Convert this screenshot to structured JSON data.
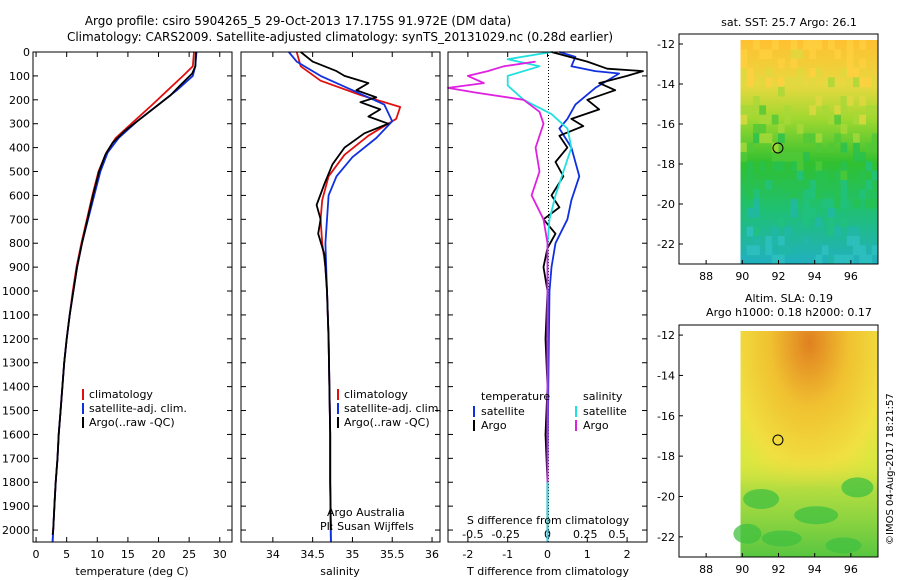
{
  "title": {
    "line1": "Argo profile: csiro 5904265_5 29-Oct-2013 17.175S 91.972E (DM data)",
    "line2": "Climatology: CARS2009. Satellite-adjusted climatology: synTS_20131029.nc (0.28d earlier)"
  },
  "colors": {
    "climatology": "#e01010",
    "satellite": "#1030e0",
    "argo": "#000000",
    "sat_salinity": "#20e0e0",
    "argo_salinity": "#e020e0"
  },
  "chart_data": [
    {
      "type": "line",
      "id": "temperature",
      "xlabel": "temperature (deg C)",
      "ylabel": "",
      "xlim": [
        -0.5,
        32
      ],
      "ylim": [
        2050,
        0
      ],
      "xticks": [
        0,
        5,
        10,
        15,
        20,
        25,
        30
      ],
      "yticks": [
        0,
        100,
        200,
        300,
        400,
        500,
        600,
        700,
        800,
        900,
        1000,
        1100,
        1200,
        1300,
        1400,
        1500,
        1600,
        1700,
        1800,
        1900,
        2000
      ],
      "legend": [
        "climatology",
        "satellite-adj. clim.",
        "Argo(..raw -QC)"
      ],
      "series": [
        {
          "name": "climatology",
          "color": "#e01010",
          "points": [
            [
              25.8,
              0
            ],
            [
              25.6,
              60
            ],
            [
              24,
              100
            ],
            [
              21.5,
              160
            ],
            [
              19,
              220
            ],
            [
              16,
              290
            ],
            [
              13,
              360
            ],
            [
              11.5,
              420
            ],
            [
              10.2,
              500
            ],
            [
              9.2,
              600
            ],
            [
              8.3,
              700
            ],
            [
              7.4,
              800
            ],
            [
              6.6,
              900
            ],
            [
              6.0,
              1000
            ],
            [
              5.5,
              1100
            ],
            [
              5.0,
              1200
            ],
            [
              4.6,
              1300
            ],
            [
              4.3,
              1400
            ],
            [
              4.0,
              1500
            ],
            [
              3.7,
              1600
            ],
            [
              3.5,
              1700
            ],
            [
              3.2,
              1800
            ],
            [
              3.0,
              1900
            ],
            [
              2.8,
              2000
            ],
            [
              2.7,
              2050
            ]
          ]
        },
        {
          "name": "satellite-adj. clim.",
          "color": "#1030e0",
          "points": [
            [
              26.2,
              0
            ],
            [
              26.0,
              60
            ],
            [
              25.6,
              100
            ],
            [
              23,
              160
            ],
            [
              20,
              220
            ],
            [
              16.5,
              290
            ],
            [
              13.5,
              360
            ],
            [
              11.7,
              420
            ],
            [
              10.5,
              500
            ],
            [
              9.5,
              600
            ],
            [
              8.5,
              700
            ],
            [
              7.5,
              800
            ],
            [
              6.7,
              900
            ],
            [
              6.1,
              1000
            ],
            [
              5.5,
              1100
            ],
            [
              5.0,
              1200
            ],
            [
              4.6,
              1300
            ],
            [
              4.3,
              1400
            ],
            [
              4.0,
              1500
            ],
            [
              3.7,
              1600
            ],
            [
              3.5,
              1700
            ],
            [
              3.2,
              1800
            ],
            [
              3.0,
              1900
            ],
            [
              2.8,
              2000
            ],
            [
              2.7,
              2050
            ]
          ]
        },
        {
          "name": "Argo(..raw -QC)",
          "color": "#000000",
          "points": [
            [
              26.1,
              0
            ],
            [
              26.0,
              60
            ],
            [
              25.5,
              90
            ],
            [
              23.5,
              140
            ],
            [
              22,
              180
            ],
            [
              19.5,
              230
            ],
            [
              17,
              280
            ],
            [
              14.5,
              330
            ],
            [
              12.5,
              380
            ],
            [
              11.3,
              430
            ],
            [
              10.3,
              500
            ],
            [
              9.3,
              600
            ],
            [
              8.4,
              700
            ],
            [
              7.5,
              800
            ],
            [
              6.7,
              900
            ],
            [
              6.1,
              1000
            ],
            [
              5.5,
              1100
            ],
            [
              5.0,
              1200
            ],
            [
              4.6,
              1300
            ],
            [
              4.3,
              1400
            ],
            [
              4.0,
              1500
            ],
            [
              3.7,
              1600
            ],
            [
              3.5,
              1700
            ],
            [
              3.2,
              1800
            ],
            [
              3.0,
              1900
            ],
            [
              2.8,
              2000
            ],
            [
              2.7,
              2020
            ]
          ]
        }
      ]
    },
    {
      "type": "line",
      "id": "salinity",
      "xlabel": "salinity",
      "xlim": [
        33.6,
        36.1
      ],
      "ylim": [
        2050,
        0
      ],
      "xticks": [
        34,
        34.5,
        35,
        35.5,
        36
      ],
      "legend": [
        "climatology",
        "satellite-adj. clim.",
        "Argo(..raw -QC)"
      ],
      "annotation": [
        "Argo Australia",
        "PI: Susan Wijffels"
      ],
      "series": [
        {
          "name": "climatology",
          "color": "#e01010",
          "points": [
            [
              34.3,
              0
            ],
            [
              34.35,
              60
            ],
            [
              34.6,
              120
            ],
            [
              35.1,
              180
            ],
            [
              35.6,
              230
            ],
            [
              35.55,
              280
            ],
            [
              35.2,
              350
            ],
            [
              34.9,
              430
            ],
            [
              34.7,
              520
            ],
            [
              34.62,
              620
            ],
            [
              34.6,
              700
            ],
            [
              34.62,
              800
            ],
            [
              34.66,
              900
            ],
            [
              34.68,
              1000
            ],
            [
              34.7,
              1200
            ],
            [
              34.71,
              1400
            ],
            [
              34.72,
              1600
            ],
            [
              34.72,
              1800
            ],
            [
              34.73,
              2050
            ]
          ]
        },
        {
          "name": "satellite-adj. clim.",
          "color": "#1030e0",
          "points": [
            [
              34.2,
              0
            ],
            [
              34.3,
              40
            ],
            [
              34.6,
              100
            ],
            [
              35.0,
              160
            ],
            [
              35.4,
              220
            ],
            [
              35.5,
              290
            ],
            [
              35.3,
              360
            ],
            [
              35.0,
              440
            ],
            [
              34.8,
              520
            ],
            [
              34.7,
              600
            ],
            [
              34.68,
              700
            ],
            [
              34.66,
              800
            ],
            [
              34.67,
              900
            ],
            [
              34.68,
              1000
            ],
            [
              34.7,
              1200
            ],
            [
              34.71,
              1400
            ],
            [
              34.72,
              1600
            ],
            [
              34.72,
              1800
            ],
            [
              34.73,
              2050
            ]
          ]
        },
        {
          "name": "Argo(..raw -QC)",
          "color": "#000000",
          "points": [
            [
              34.35,
              0
            ],
            [
              34.5,
              40
            ],
            [
              34.8,
              80
            ],
            [
              34.9,
              100
            ],
            [
              35.2,
              130
            ],
            [
              35.05,
              160
            ],
            [
              35.3,
              190
            ],
            [
              35.1,
              210
            ],
            [
              35.35,
              240
            ],
            [
              35.2,
              270
            ],
            [
              35.45,
              300
            ],
            [
              35.15,
              340
            ],
            [
              34.9,
              400
            ],
            [
              34.75,
              470
            ],
            [
              34.65,
              550
            ],
            [
              34.55,
              640
            ],
            [
              34.6,
              700
            ],
            [
              34.57,
              760
            ],
            [
              34.65,
              850
            ],
            [
              34.68,
              1000
            ],
            [
              34.7,
              1200
            ],
            [
              34.71,
              1400
            ],
            [
              34.72,
              1600
            ],
            [
              34.72,
              1800
            ],
            [
              34.73,
              2000
            ]
          ]
        }
      ]
    },
    {
      "type": "line",
      "id": "difference",
      "xlabel": "T difference from climatology",
      "xlabel_top": "S difference from climatology",
      "xlim": [
        -2.5,
        2.5
      ],
      "ylim": [
        2050,
        0
      ],
      "xticks": [
        -2,
        -1,
        0,
        1,
        2
      ],
      "xticks_salinity": [
        "-0.5",
        "-0.25",
        "0",
        "0.25",
        "0.5"
      ],
      "legend_temperature_title": "temperature",
      "legend_salinity_title": "salinity",
      "legend": [
        "satellite",
        "Argo",
        "satellite",
        "Argo"
      ],
      "series": [
        {
          "name": "T satellite",
          "color": "#1030e0",
          "points": [
            [
              0.3,
              0
            ],
            [
              0.7,
              20
            ],
            [
              0.6,
              60
            ],
            [
              1.2,
              80
            ],
            [
              1.8,
              90
            ],
            [
              1.2,
              150
            ],
            [
              0.7,
              220
            ],
            [
              0.5,
              280
            ],
            [
              0.3,
              320
            ],
            [
              0.6,
              400
            ],
            [
              0.8,
              520
            ],
            [
              0.6,
              620
            ],
            [
              0.5,
              700
            ],
            [
              0.2,
              800
            ],
            [
              0.1,
              900
            ],
            [
              0.05,
              1000
            ],
            [
              0.02,
              1400
            ],
            [
              0,
              1800
            ],
            [
              0,
              2050
            ]
          ]
        },
        {
          "name": "T Argo",
          "color": "#000000",
          "points": [
            [
              0.1,
              0
            ],
            [
              1.0,
              40
            ],
            [
              1.5,
              70
            ],
            [
              2.4,
              80
            ],
            [
              2.0,
              100
            ],
            [
              1.3,
              130
            ],
            [
              1.7,
              160
            ],
            [
              1.0,
              200
            ],
            [
              1.3,
              240
            ],
            [
              0.6,
              280
            ],
            [
              0.9,
              310
            ],
            [
              0.3,
              350
            ],
            [
              0.5,
              400
            ],
            [
              0.2,
              460
            ],
            [
              0.4,
              520
            ],
            [
              0.1,
              600
            ],
            [
              0.3,
              650
            ],
            [
              -0.1,
              700
            ],
            [
              0.2,
              760
            ],
            [
              0.0,
              820
            ],
            [
              -0.1,
              900
            ],
            [
              0.0,
              1000
            ],
            [
              -0.05,
              1200
            ],
            [
              0.0,
              1400
            ],
            [
              -0.05,
              1600
            ],
            [
              0.0,
              1800
            ],
            [
              0.0,
              2000
            ]
          ]
        },
        {
          "name": "S satellite",
          "color": "#20e0e0",
          "points": [
            [
              0.1,
              0
            ],
            [
              -1.0,
              30
            ],
            [
              -0.2,
              60
            ],
            [
              -1.0,
              100
            ],
            [
              -1.0,
              140
            ],
            [
              -0.6,
              200
            ],
            [
              0.1,
              260
            ],
            [
              0.5,
              320
            ],
            [
              0.6,
              400
            ],
            [
              0.4,
              500
            ],
            [
              0.2,
              600
            ],
            [
              0.05,
              700
            ],
            [
              0,
              800
            ],
            [
              0,
              1000
            ],
            [
              0,
              1400
            ],
            [
              0,
              2050
            ]
          ]
        },
        {
          "name": "S Argo",
          "color": "#e020e0",
          "points": [
            [
              -0.3,
              40
            ],
            [
              -1.1,
              60
            ],
            [
              -1.5,
              80
            ],
            [
              -2.0,
              100
            ],
            [
              -1.6,
              130
            ],
            [
              -2.5,
              150
            ],
            [
              -1.8,
              170
            ],
            [
              -0.6,
              200
            ],
            [
              -0.2,
              250
            ],
            [
              -0.1,
              300
            ],
            [
              -0.3,
              400
            ],
            [
              -0.2,
              500
            ],
            [
              -0.4,
              600
            ],
            [
              -0.1,
              700
            ],
            [
              0.0,
              800
            ],
            [
              0,
              1000
            ],
            [
              0,
              1400
            ],
            [
              0,
              1800
            ]
          ]
        }
      ]
    },
    {
      "type": "heatmap",
      "id": "sst_map",
      "title": "sat. SST: 25.7  Argo: 26.1",
      "xlim": [
        86.5,
        97.5
      ],
      "ylim": [
        -23,
        -11.5
      ],
      "xticks": [
        88,
        90,
        92,
        94,
        96
      ],
      "yticks": [
        -12,
        -14,
        -16,
        -18,
        -20,
        -22
      ],
      "marker": {
        "lon": 91.97,
        "lat": -17.2
      }
    },
    {
      "type": "heatmap",
      "id": "sla_map",
      "title": "Altim. SLA: 0.19",
      "subtitle": "Argo h1000: 0.18  h2000: 0.17",
      "xlim": [
        86.5,
        97.5
      ],
      "ylim": [
        -23,
        -11.5
      ],
      "xticks": [
        88,
        90,
        92,
        94,
        96
      ],
      "yticks": [
        -12,
        -14,
        -16,
        -18,
        -20,
        -22
      ],
      "marker": {
        "lon": 91.97,
        "lat": -17.2
      }
    }
  ],
  "stamp": "©IMOS 04-Aug-2017 18:21:57"
}
